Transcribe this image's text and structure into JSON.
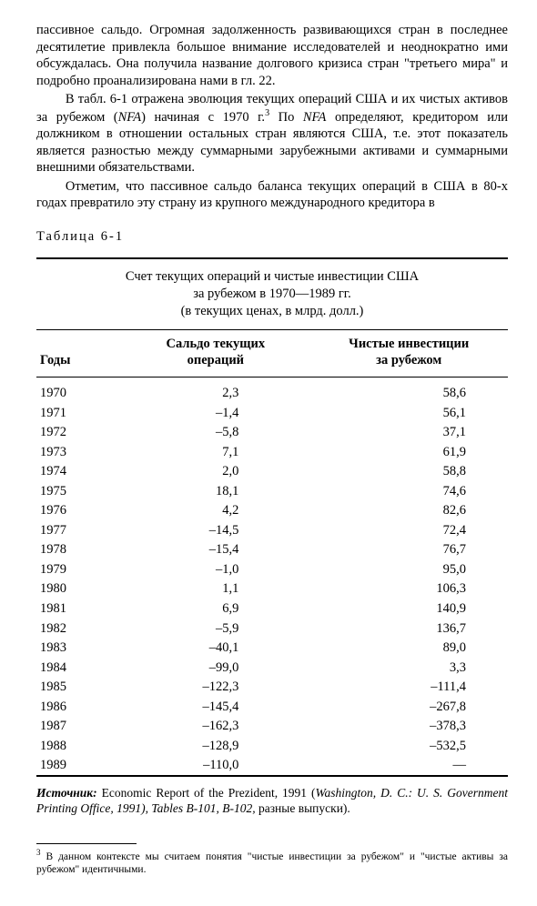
{
  "paragraphs": {
    "p1": "пассивное сальдо. Огромная задолженность развивающихся стран в последнее десятилетие привлекла большое внимание исследователей и неоднократно ими обсуждалась. Она получила название долгового кризиса стран \"третьего мира\" и подробно проанализирована нами в гл. 22.",
    "p2_a": "В табл. 6-1 отражена эволюция текущих операций США и их чистых активов за рубежом (",
    "p2_nfa1": "NFA",
    "p2_b": ") начиная с 1970 г.",
    "p2_fn": "3",
    "p2_c": " По ",
    "p2_nfa2": "NFA",
    "p2_d": " определяют, кредитором или должником в отношении остальных стран являются США, т.е. этот показатель является разностью между суммарными зарубежными активами и суммарными внешними обязательствами.",
    "p3": "Отметим, что пассивное сальдо баланса текущих операций в США в 80-х годах превратило эту страну из крупного международного кредитора в"
  },
  "table": {
    "label": "Таблица  6-1",
    "title_l1": "Счет текущих операций и чистые инвестиции США",
    "title_l2": "за рубежом в 1970—1989 гг.",
    "title_l3": "(в текущих ценах, в млрд. долл.)",
    "headers": {
      "years": "Годы",
      "balance_l1": "Сальдо текущих",
      "balance_l2": "операций",
      "invest_l1": "Чистые инвестиции",
      "invest_l2": "за рубежом"
    },
    "rows": [
      {
        "year": "1970",
        "balance": "2,3",
        "invest": "58,6"
      },
      {
        "year": "1971",
        "balance": "–1,4",
        "invest": "56,1"
      },
      {
        "year": "1972",
        "balance": "–5,8",
        "invest": "37,1"
      },
      {
        "year": "1973",
        "balance": "7,1",
        "invest": "61,9"
      },
      {
        "year": "1974",
        "balance": "2,0",
        "invest": "58,8"
      },
      {
        "year": "1975",
        "balance": "18,1",
        "invest": "74,6"
      },
      {
        "year": "1976",
        "balance": "4,2",
        "invest": "82,6"
      },
      {
        "year": "1977",
        "balance": "–14,5",
        "invest": "72,4"
      },
      {
        "year": "1978",
        "balance": "–15,4",
        "invest": "76,7"
      },
      {
        "year": "1979",
        "balance": "–1,0",
        "invest": "95,0"
      },
      {
        "year": "1980",
        "balance": "1,1",
        "invest": "106,3"
      },
      {
        "year": "1981",
        "balance": "6,9",
        "invest": "140,9"
      },
      {
        "year": "1982",
        "balance": "–5,9",
        "invest": "136,7"
      },
      {
        "year": "1983",
        "balance": "–40,1",
        "invest": "89,0"
      },
      {
        "year": "1984",
        "balance": "–99,0",
        "invest": "3,3"
      },
      {
        "year": "1985",
        "balance": "–122,3",
        "invest": "–111,4"
      },
      {
        "year": "1986",
        "balance": "–145,4",
        "invest": "–267,8"
      },
      {
        "year": "1987",
        "balance": "–162,3",
        "invest": "–378,3"
      },
      {
        "year": "1988",
        "balance": "–128,9",
        "invest": "–532,5"
      },
      {
        "year": "1989",
        "balance": "–110,0",
        "invest": "—"
      }
    ]
  },
  "source": {
    "label": "Источник:",
    "text_a": " Economic Report of the Prezident, 1991 (",
    "ital": "Washington, D. C.: U. S. Government Printing Office, 1991), Tables B-101, B-102,",
    "text_b": " разные выпуски)."
  },
  "footnote": {
    "marker": "3",
    "text": " В данном контексте мы считаем понятия \"чистые инвестиции за рубежом\" и \"чистые активы за рубежом\" идентичными."
  }
}
